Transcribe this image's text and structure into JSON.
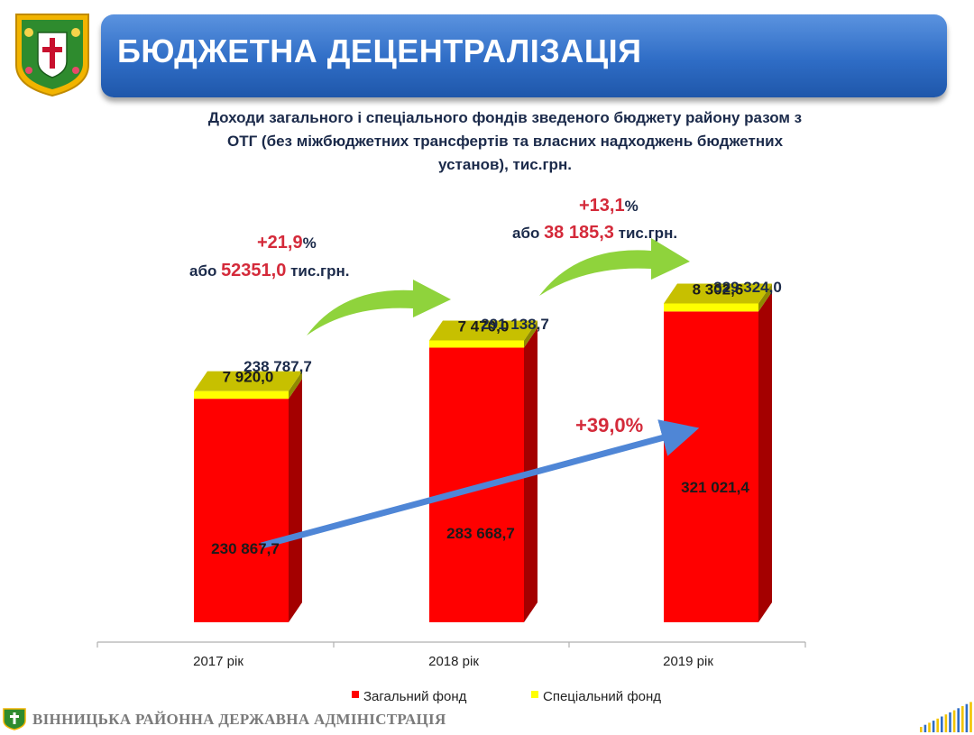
{
  "header": {
    "title": "БЮДЖЕТНА ДЕЦЕНТРАЛІЗАЦІЯ",
    "logo_icon": "coat-of-arms-icon"
  },
  "subtitle_lines": [
    "Доходи загального  і спеціального фондів зведеного бюджету району разом з",
    "ОТГ  (без міжбюджетних трансфертів та власних надходжень бюджетних",
    "установ), тис.грн."
  ],
  "chart_data": {
    "type": "bar",
    "stacked": true,
    "categories": [
      "2017 рік",
      "2018 рік",
      "2019 рік"
    ],
    "series": [
      {
        "name": "Загальний фонд",
        "values": [
          230867.7,
          283668.7,
          321021.4
        ],
        "labels": [
          "230 867,7",
          "283 668,7",
          "321 021,4"
        ],
        "color": "#ff0000"
      },
      {
        "name": "Спеціальний фонд",
        "values": [
          7920.0,
          7470.0,
          8302.6
        ],
        "labels": [
          "7 920,0",
          "7 470,0",
          "8 302,6"
        ],
        "color": "#ffff00"
      }
    ],
    "totals": [
      238787.7,
      291138.7,
      329324.0
    ],
    "total_labels": [
      "238 787,7",
      "291 138,7",
      "329 324,0"
    ],
    "ylim": [
      0,
      340000
    ],
    "annotations": [
      {
        "id": "growth-2018",
        "percent": "+21,9",
        "percent_suffix": "%",
        "prefix": "або",
        "amount": "52351,0",
        "unit": "тис.грн."
      },
      {
        "id": "growth-2019",
        "percent": "+13,1",
        "percent_suffix": "%",
        "prefix": "або",
        "amount": "38 185,3",
        "unit": "тис.грн."
      },
      {
        "id": "growth-total",
        "text": "+39,0%"
      }
    ],
    "colors": {
      "general_side": "#a40000",
      "special_top": "#c7c000",
      "special_side": "#8f8a00",
      "curved_arrow": "#8fd33c",
      "trend_arrow": "#4f86d6",
      "accent_text": "#d42a3a"
    }
  },
  "footer": {
    "text": "ВІННИЦЬКА РАЙОННА ДЕРЖАВНА АДМІНІСТРАЦІЯ"
  }
}
